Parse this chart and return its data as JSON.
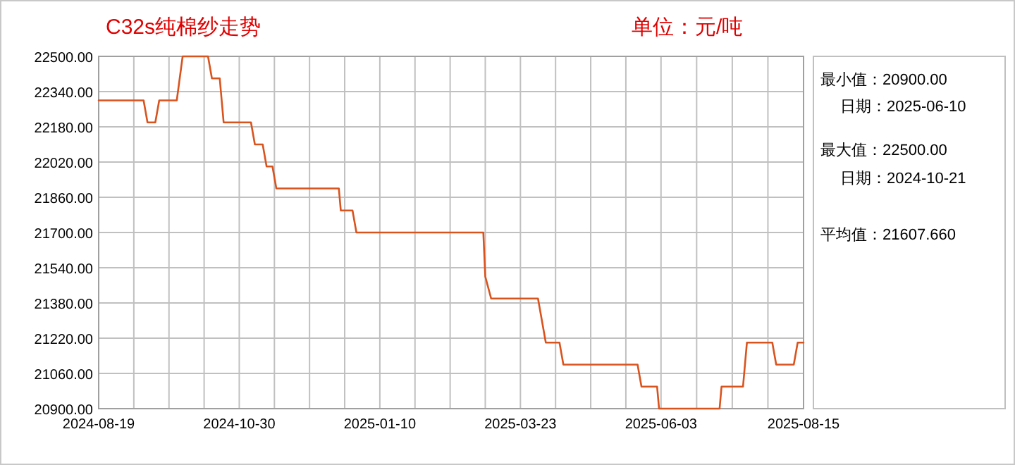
{
  "chart_data": {
    "type": "line",
    "title": "C32s纯棉纱走势",
    "x": [
      "2024-08-19",
      "2024-09-11",
      "2024-09-13",
      "2024-09-17",
      "2024-09-19",
      "2024-09-28",
      "2024-10-01",
      "2024-10-14",
      "2024-10-16",
      "2024-10-20",
      "2024-10-22",
      "2024-11-05",
      "2024-11-07",
      "2024-11-11",
      "2024-11-13",
      "2024-11-16",
      "2024-11-18",
      "2024-12-20",
      "2024-12-21",
      "2024-12-27",
      "2024-12-29",
      "2025-03-04",
      "2025-03-05",
      "2025-03-08",
      "2025-04-01",
      "2025-04-05",
      "2025-04-12",
      "2025-04-14",
      "2025-05-22",
      "2025-05-24",
      "2025-06-01",
      "2025-06-02",
      "2025-07-03",
      "2025-07-04",
      "2025-07-15",
      "2025-07-17",
      "2025-07-30",
      "2025-08-01",
      "2025-08-10",
      "2025-08-12",
      "2025-08-15"
    ],
    "series": [
      {
        "color": "#d9531e",
        "values": [
          22300,
          22300,
          22200,
          22200,
          22300,
          22300,
          22500,
          22500,
          22400,
          22400,
          22200,
          22200,
          22100,
          22100,
          22000,
          22000,
          21900,
          21900,
          21800,
          21800,
          21700,
          21700,
          21500,
          21400,
          21400,
          21200,
          21200,
          21100,
          21100,
          21000,
          21000,
          20900,
          20900,
          21000,
          21000,
          21200,
          21200,
          21100,
          21100,
          21200,
          21200
        ]
      }
    ],
    "xlim": [
      "2024-08-19",
      "2025-08-15"
    ],
    "xticks": [
      "2024-08-19",
      "2024-10-30",
      "2025-01-10",
      "2025-03-23",
      "2025-06-03",
      "2025-08-15"
    ],
    "ylim": [
      20900,
      22500
    ],
    "yticks": [
      {
        "value": 20900,
        "label": "20900.00"
      },
      {
        "value": 21060,
        "label": "21060.00"
      },
      {
        "value": 21220,
        "label": "21220.00"
      },
      {
        "value": 21380,
        "label": "21380.00"
      },
      {
        "value": 21540,
        "label": "21540.00"
      },
      {
        "value": 21700,
        "label": "21700.00"
      },
      {
        "value": 21860,
        "label": "21860.00"
      },
      {
        "value": 22020,
        "label": "22020.00"
      },
      {
        "value": 22180,
        "label": "22180.00"
      },
      {
        "value": 22340,
        "label": "22340.00"
      },
      {
        "value": 22500,
        "label": "22500.00"
      }
    ],
    "grid": true,
    "marker": "none",
    "annotations": [
      "单位：元/吨",
      "最小值：20900.00",
      "日期：2025-06-10",
      "最大值：22500.00",
      "日期：2024-10-21",
      "平均值：21607.660"
    ]
  }
}
